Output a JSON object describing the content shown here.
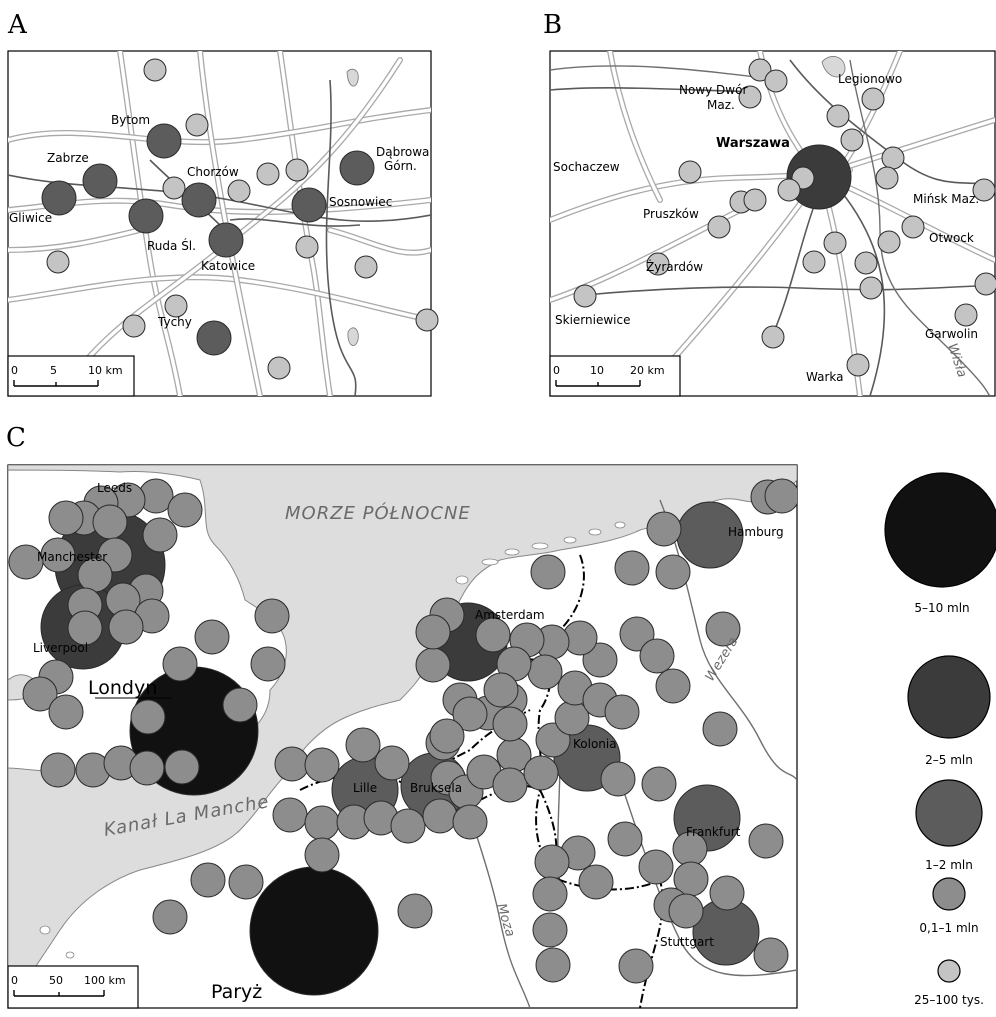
{
  "panels": {
    "a": {
      "letter": "A",
      "scale": {
        "t0": "0",
        "t1": "5",
        "t2": "10 km"
      },
      "labels": {
        "bytom": "Bytom",
        "zabrze": "Zabrze",
        "gliwice": "Gliwice",
        "chorzow": "Chorzów",
        "ruda": "Ruda Śl.",
        "katowice": "Katowice",
        "sosnowiec": "Sosnowiec",
        "dabrowa1": "Dąbrowa",
        "dabrowa2": "Górn.",
        "tychy": "Tychy"
      }
    },
    "b": {
      "letter": "B",
      "scale": {
        "t0": "0",
        "t1": "10",
        "t2": "20 km"
      },
      "labels": {
        "nowy1": "Nowy Dwór",
        "nowy2": "Maz.",
        "legionowo": "Legionowo",
        "warszawa": "Warszawa",
        "sochaczew": "Sochaczew",
        "pruszkow": "Pruszków",
        "minsk": "Mińsk Maz.",
        "otwock": "Otwock",
        "zyrardow": "Żyrardów",
        "skierniewice": "Skierniewice",
        "garwolin": "Garwolin",
        "warka": "Warka",
        "wisla": "Wisła"
      }
    },
    "c": {
      "letter": "C",
      "scale": {
        "t0": "0",
        "t1": "50",
        "t2": "100 km"
      },
      "labels": {
        "leeds": "Leeds",
        "manchester": "Manchester",
        "liverpool": "Liverpool",
        "londyn": "Londyn",
        "morze": "MORZE PÓŁNOCNE",
        "kanal": "Kanał La Manche",
        "lille": "Lille",
        "bruksela": "Bruksela",
        "amsterdam": "Amsterdam",
        "kolonia": "Kolonia",
        "hamburg": "Hamburg",
        "frankfurt": "Frankfurt",
        "stuttgart": "Stuttgart",
        "paryz": "Paryż",
        "wezera": "Wezera",
        "moza": "Moza"
      }
    }
  },
  "legend": {
    "items": [
      {
        "label": "5–10 mln",
        "color": "#111111"
      },
      {
        "label": "2–5 mln",
        "color": "#3b3b3b"
      },
      {
        "label": "1–2 mln",
        "color": "#5c5c5c"
      },
      {
        "label": "0,1–1 mln",
        "color": "#8d8d8d"
      },
      {
        "label": "25–100 tys.",
        "color": "#c4c4c4"
      }
    ]
  }
}
